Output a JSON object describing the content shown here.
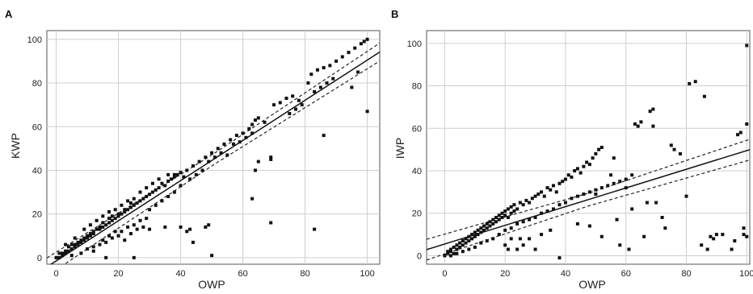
{
  "chart_data": [
    {
      "type": "scatter",
      "panel_label": "A",
      "xlabel": "OWP",
      "ylabel": "KWP",
      "xlim": [
        -3,
        104
      ],
      "ylim": [
        -3,
        104
      ],
      "x_ticks": [
        0,
        20,
        40,
        60,
        80,
        100
      ],
      "y_ticks": [
        0,
        20,
        40,
        60,
        80,
        100
      ],
      "grid": true,
      "regression": {
        "intercept": -1.5,
        "slope": 0.92,
        "ci_lower_offset": -2.5,
        "ci_upper_offset": 2.5,
        "ci_widen_per_unit": 0.03
      },
      "points": [
        [
          0,
          0
        ],
        [
          1,
          0
        ],
        [
          2,
          1
        ],
        [
          1,
          2
        ],
        [
          2,
          2
        ],
        [
          3,
          2
        ],
        [
          3,
          3
        ],
        [
          4,
          3
        ],
        [
          5,
          4
        ],
        [
          4,
          5
        ],
        [
          6,
          5
        ],
        [
          5,
          6
        ],
        [
          6,
          6
        ],
        [
          7,
          6
        ],
        [
          7,
          7
        ],
        [
          8,
          7
        ],
        [
          8,
          8
        ],
        [
          9,
          8
        ],
        [
          9,
          9
        ],
        [
          10,
          10
        ],
        [
          10,
          9
        ],
        [
          11,
          10
        ],
        [
          11,
          11
        ],
        [
          12,
          11
        ],
        [
          12,
          12
        ],
        [
          13,
          13
        ],
        [
          14,
          13
        ],
        [
          14,
          14
        ],
        [
          15,
          14
        ],
        [
          15,
          16
        ],
        [
          16,
          15
        ],
        [
          17,
          16
        ],
        [
          17,
          18
        ],
        [
          18,
          17
        ],
        [
          18,
          19
        ],
        [
          19,
          18
        ],
        [
          20,
          19
        ],
        [
          20,
          20
        ],
        [
          21,
          20
        ],
        [
          22,
          21
        ],
        [
          22,
          22
        ],
        [
          23,
          22
        ],
        [
          24,
          23
        ],
        [
          24,
          25
        ],
        [
          25,
          24
        ],
        [
          26,
          25
        ],
        [
          27,
          26
        ],
        [
          28,
          27
        ],
        [
          29,
          28
        ],
        [
          30,
          29
        ],
        [
          31,
          30
        ],
        [
          32,
          31
        ],
        [
          33,
          32
        ],
        [
          34,
          34
        ],
        [
          35,
          33
        ],
        [
          36,
          35
        ],
        [
          37,
          36
        ],
        [
          38,
          37
        ],
        [
          39,
          38
        ],
        [
          40,
          39
        ],
        [
          42,
          40
        ],
        [
          44,
          42
        ],
        [
          46,
          44
        ],
        [
          48,
          46
        ],
        [
          50,
          48
        ],
        [
          52,
          50
        ],
        [
          54,
          52
        ],
        [
          56,
          54
        ],
        [
          58,
          56
        ],
        [
          60,
          57
        ],
        [
          62,
          59
        ],
        [
          63,
          61
        ],
        [
          64,
          63
        ],
        [
          65,
          64
        ],
        [
          67,
          62
        ],
        [
          70,
          70
        ],
        [
          72,
          71
        ],
        [
          74,
          73
        ],
        [
          76,
          74
        ],
        [
          78,
          72
        ],
        [
          81,
          80
        ],
        [
          82,
          84
        ],
        [
          84,
          86
        ],
        [
          86,
          87
        ],
        [
          88,
          88
        ],
        [
          90,
          90
        ],
        [
          92,
          92
        ],
        [
          94,
          94
        ],
        [
          96,
          96
        ],
        [
          98,
          98
        ],
        [
          99,
          99
        ],
        [
          100,
          100
        ],
        [
          5,
          1
        ],
        [
          8,
          2
        ],
        [
          10,
          4
        ],
        [
          12,
          5
        ],
        [
          15,
          8
        ],
        [
          17,
          10
        ],
        [
          19,
          12
        ],
        [
          21,
          12
        ],
        [
          23,
          14
        ],
        [
          25,
          15
        ],
        [
          27,
          17
        ],
        [
          29,
          18
        ],
        [
          30,
          22
        ],
        [
          32,
          24
        ],
        [
          34,
          26
        ],
        [
          36,
          28
        ],
        [
          38,
          30
        ],
        [
          40,
          33
        ],
        [
          20,
          10
        ],
        [
          22,
          8
        ],
        [
          24,
          11
        ],
        [
          26,
          13
        ],
        [
          28,
          14
        ],
        [
          30,
          13
        ],
        [
          35,
          14
        ],
        [
          40,
          14
        ],
        [
          42,
          12
        ],
        [
          12,
          3
        ],
        [
          14,
          6
        ],
        [
          16,
          7
        ],
        [
          18,
          9
        ],
        [
          3,
          6
        ],
        [
          6,
          9
        ],
        [
          9,
          13
        ],
        [
          11,
          15
        ],
        [
          13,
          17
        ],
        [
          15,
          19
        ],
        [
          17,
          21
        ],
        [
          19,
          22
        ],
        [
          21,
          24
        ],
        [
          23,
          26
        ],
        [
          25,
          27
        ],
        [
          27,
          30
        ],
        [
          29,
          32
        ],
        [
          31,
          34
        ],
        [
          33,
          36
        ],
        [
          36,
          38
        ],
        [
          38,
          38
        ],
        [
          41,
          37
        ],
        [
          43,
          36
        ],
        [
          45,
          38
        ],
        [
          47,
          40
        ],
        [
          49,
          44
        ],
        [
          51,
          46
        ],
        [
          53,
          48
        ],
        [
          55,
          47
        ],
        [
          57,
          52
        ],
        [
          59,
          53
        ],
        [
          61,
          55
        ],
        [
          63,
          57
        ],
        [
          65,
          44
        ],
        [
          69,
          46
        ],
        [
          69,
          45
        ],
        [
          75,
          66
        ],
        [
          77,
          68
        ],
        [
          79,
          70
        ],
        [
          83,
          76
        ],
        [
          85,
          78
        ],
        [
          87,
          80
        ],
        [
          89,
          82
        ],
        [
          95,
          78
        ],
        [
          97,
          85
        ],
        [
          100,
          67
        ],
        [
          16,
          0
        ],
        [
          25,
          0
        ],
        [
          43,
          13
        ],
        [
          44,
          7
        ],
        [
          48,
          14
        ],
        [
          49,
          15
        ],
        [
          50,
          1
        ],
        [
          63,
          27
        ],
        [
          64,
          40
        ],
        [
          69,
          16
        ],
        [
          83,
          13
        ],
        [
          86,
          56
        ]
      ]
    },
    {
      "type": "scatter",
      "panel_label": "B",
      "xlabel": "OWP",
      "ylabel": "IWP",
      "xlim": [
        -6,
        101
      ],
      "ylim": [
        -4,
        106
      ],
      "x_ticks": [
        0,
        20,
        40,
        60,
        80,
        100
      ],
      "y_ticks": [
        0,
        20,
        40,
        60,
        80,
        100
      ],
      "grid": true,
      "regression": {
        "intercept": 5.5,
        "slope": 0.44,
        "ci_lower_offset": -3,
        "ci_upper_offset": 3,
        "ci_widen_per_unit": 0.035
      },
      "points": [
        [
          0,
          0
        ],
        [
          1,
          1
        ],
        [
          1,
          2
        ],
        [
          2,
          2
        ],
        [
          2,
          3
        ],
        [
          3,
          1
        ],
        [
          3,
          4
        ],
        [
          4,
          3
        ],
        [
          4,
          5
        ],
        [
          5,
          4
        ],
        [
          5,
          6
        ],
        [
          6,
          5
        ],
        [
          6,
          7
        ],
        [
          7,
          6
        ],
        [
          7,
          8
        ],
        [
          8,
          7
        ],
        [
          8,
          9
        ],
        [
          9,
          8
        ],
        [
          9,
          10
        ],
        [
          10,
          9
        ],
        [
          10,
          11
        ],
        [
          11,
          10
        ],
        [
          11,
          12
        ],
        [
          12,
          11
        ],
        [
          12,
          13
        ],
        [
          13,
          12
        ],
        [
          13,
          14
        ],
        [
          14,
          13
        ],
        [
          14,
          15
        ],
        [
          15,
          14
        ],
        [
          15,
          16
        ],
        [
          16,
          15
        ],
        [
          16,
          17
        ],
        [
          17,
          16
        ],
        [
          17,
          18
        ],
        [
          18,
          17
        ],
        [
          18,
          19
        ],
        [
          19,
          18
        ],
        [
          19,
          20
        ],
        [
          20,
          19
        ],
        [
          20,
          21
        ],
        [
          21,
          18
        ],
        [
          21,
          22
        ],
        [
          22,
          20
        ],
        [
          22,
          23
        ],
        [
          23,
          21
        ],
        [
          23,
          24
        ],
        [
          24,
          22
        ],
        [
          25,
          25
        ],
        [
          26,
          24
        ],
        [
          27,
          26
        ],
        [
          28,
          25
        ],
        [
          29,
          27
        ],
        [
          30,
          28
        ],
        [
          31,
          29
        ],
        [
          32,
          30
        ],
        [
          33,
          28
        ],
        [
          34,
          32
        ],
        [
          35,
          31
        ],
        [
          36,
          33
        ],
        [
          37,
          30
        ],
        [
          38,
          34
        ],
        [
          39,
          35
        ],
        [
          40,
          36
        ],
        [
          41,
          38
        ],
        [
          42,
          37
        ],
        [
          43,
          40
        ],
        [
          44,
          41
        ],
        [
          45,
          39
        ],
        [
          46,
          42
        ],
        [
          47,
          44
        ],
        [
          48,
          43
        ],
        [
          49,
          46
        ],
        [
          50,
          48
        ],
        [
          51,
          50
        ],
        [
          52,
          51
        ],
        [
          2,
          0
        ],
        [
          4,
          1
        ],
        [
          6,
          2
        ],
        [
          8,
          3
        ],
        [
          10,
          4
        ],
        [
          12,
          6
        ],
        [
          14,
          7
        ],
        [
          16,
          8
        ],
        [
          18,
          10
        ],
        [
          20,
          12
        ],
        [
          22,
          13
        ],
        [
          24,
          15
        ],
        [
          26,
          16
        ],
        [
          28,
          17
        ],
        [
          30,
          18
        ],
        [
          32,
          20
        ],
        [
          34,
          21
        ],
        [
          36,
          22
        ],
        [
          38,
          24
        ],
        [
          40,
          25
        ],
        [
          42,
          27
        ],
        [
          44,
          28
        ],
        [
          46,
          29
        ],
        [
          48,
          30
        ],
        [
          50,
          31
        ],
        [
          52,
          32
        ],
        [
          54,
          33
        ],
        [
          56,
          34
        ],
        [
          58,
          35
        ],
        [
          60,
          36
        ],
        [
          62,
          38
        ],
        [
          20,
          5
        ],
        [
          21,
          3
        ],
        [
          22,
          8
        ],
        [
          24,
          3
        ],
        [
          25,
          8
        ],
        [
          26,
          5
        ],
        [
          28,
          8
        ],
        [
          30,
          3
        ],
        [
          32,
          10
        ],
        [
          35,
          12
        ],
        [
          38,
          -1
        ],
        [
          44,
          15
        ],
        [
          48,
          14
        ],
        [
          50,
          29
        ],
        [
          52,
          9
        ],
        [
          55,
          38
        ],
        [
          56,
          46
        ],
        [
          57,
          17
        ],
        [
          58,
          5
        ],
        [
          60,
          32
        ],
        [
          61,
          3
        ],
        [
          62,
          22
        ],
        [
          63,
          62
        ],
        [
          64,
          61
        ],
        [
          65,
          63
        ],
        [
          66,
          9
        ],
        [
          67,
          25
        ],
        [
          68,
          68
        ],
        [
          69,
          69
        ],
        [
          69,
          61
        ],
        [
          70,
          25
        ],
        [
          72,
          18
        ],
        [
          73,
          13
        ],
        [
          75,
          52
        ],
        [
          76,
          50
        ],
        [
          78,
          48
        ],
        [
          80,
          28
        ],
        [
          81,
          81
        ],
        [
          83,
          82
        ],
        [
          85,
          5
        ],
        [
          86,
          75
        ],
        [
          87,
          3
        ],
        [
          88,
          9
        ],
        [
          89,
          8
        ],
        [
          90,
          10
        ],
        [
          92,
          10
        ],
        [
          95,
          3
        ],
        [
          96,
          7
        ],
        [
          97,
          57
        ],
        [
          98,
          58
        ],
        [
          99,
          13
        ],
        [
          99,
          10
        ],
        [
          100,
          99
        ],
        [
          100,
          62
        ],
        [
          100,
          9
        ]
      ]
    }
  ]
}
